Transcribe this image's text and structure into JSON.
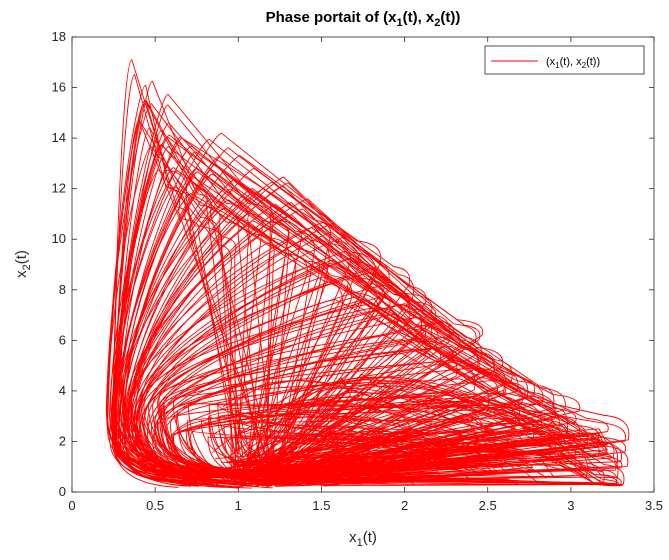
{
  "chart_data": {
    "type": "line",
    "title": {
      "base": "Phase portait of (x",
      "sub1": "1",
      "mid": "(t), x",
      "sub2": "2",
      "end": "(t))"
    },
    "xlabel": {
      "base": "x",
      "sub": "1",
      "end": "(t)"
    },
    "ylabel": {
      "base": "x",
      "sub": "2",
      "end": "(t)"
    },
    "xlim": [
      0,
      3.5
    ],
    "ylim": [
      0,
      18
    ],
    "xticks": [
      0,
      0.5,
      1,
      1.5,
      2,
      2.5,
      3,
      3.5
    ],
    "xtick_labels": [
      "0",
      "0.5",
      "1",
      "1.5",
      "2",
      "2.5",
      "3",
      "3.5"
    ],
    "yticks": [
      0,
      2,
      4,
      6,
      8,
      10,
      12,
      14,
      16,
      18
    ],
    "ytick_labels": [
      "0",
      "2",
      "4",
      "6",
      "8",
      "10",
      "12",
      "14",
      "16",
      "18"
    ],
    "grid": false,
    "legend": {
      "placement": "top-right",
      "label": {
        "p1": "(x",
        "s1": "1",
        "p2": "(t), x",
        "s2": "2",
        "p3": "(t))"
      }
    },
    "series": [
      {
        "color": "#ff0000",
        "description_of_shape": "quasi-periodic orbit: fast rise at low x1 (≈0.2–0.6) to high x2 peaks, then decay along diagonal toward high x1 / low x2",
        "lobes": [
          {
            "x_return": 0.22,
            "x_peak": 0.4,
            "y_peak": 16.8,
            "x_tip": 0.62,
            "y_tip": 12.6
          },
          {
            "x_return": 0.24,
            "x_peak": 0.44,
            "y_peak": 16.4,
            "x_tip": 0.78,
            "y_tip": 12.0
          },
          {
            "x_return": 0.23,
            "x_peak": 0.5,
            "y_peak": 15.1,
            "x_tip": 0.9,
            "y_tip": 11.5
          },
          {
            "x_return": 0.26,
            "x_peak": 0.54,
            "y_peak": 15.6,
            "x_tip": 1.1,
            "y_tip": 11.8
          },
          {
            "x_return": 0.25,
            "x_peak": 0.62,
            "y_peak": 14.2,
            "x_tip": 1.25,
            "y_tip": 10.9
          },
          {
            "x_return": 0.28,
            "x_peak": 0.7,
            "y_peak": 14.4,
            "x_tip": 1.4,
            "y_tip": 10.8
          },
          {
            "x_return": 0.27,
            "x_peak": 0.78,
            "y_peak": 13.9,
            "x_tip": 1.55,
            "y_tip": 10.0
          },
          {
            "x_return": 0.3,
            "x_peak": 0.88,
            "y_peak": 14.2,
            "x_tip": 1.7,
            "y_tip": 9.7
          },
          {
            "x_return": 0.29,
            "x_peak": 0.96,
            "y_peak": 13.2,
            "x_tip": 1.8,
            "y_tip": 9.1
          },
          {
            "x_return": 0.33,
            "x_peak": 1.05,
            "y_peak": 13.3,
            "x_tip": 1.92,
            "y_tip": 8.8
          },
          {
            "x_return": 0.31,
            "x_peak": 1.18,
            "y_peak": 12.4,
            "x_tip": 2.0,
            "y_tip": 8.2
          },
          {
            "x_return": 0.36,
            "x_peak": 1.3,
            "y_peak": 12.9,
            "x_tip": 2.1,
            "y_tip": 7.6
          },
          {
            "x_return": 0.34,
            "x_peak": 1.4,
            "y_peak": 11.4,
            "x_tip": 2.2,
            "y_tip": 7.2
          },
          {
            "x_return": 0.4,
            "x_peak": 1.52,
            "y_peak": 11.1,
            "x_tip": 2.3,
            "y_tip": 6.9
          },
          {
            "x_return": 0.38,
            "x_peak": 1.6,
            "y_peak": 10.2,
            "x_tip": 2.38,
            "y_tip": 6.6
          },
          {
            "x_return": 0.44,
            "x_peak": 1.7,
            "y_peak": 9.7,
            "x_tip": 2.45,
            "y_tip": 5.9
          },
          {
            "x_return": 0.42,
            "x_peak": 1.8,
            "y_peak": 9.1,
            "x_tip": 2.55,
            "y_tip": 5.4
          },
          {
            "x_return": 0.5,
            "x_peak": 1.9,
            "y_peak": 8.3,
            "x_tip": 2.62,
            "y_tip": 5.0
          },
          {
            "x_return": 0.48,
            "x_peak": 2.0,
            "y_peak": 7.7,
            "x_tip": 2.7,
            "y_tip": 4.6
          },
          {
            "x_return": 0.56,
            "x_peak": 2.1,
            "y_peak": 7.0,
            "x_tip": 2.78,
            "y_tip": 4.1
          },
          {
            "x_return": 0.54,
            "x_peak": 2.2,
            "y_peak": 6.4,
            "x_tip": 2.86,
            "y_tip": 4.2
          },
          {
            "x_return": 0.62,
            "x_peak": 2.3,
            "y_peak": 5.8,
            "x_tip": 2.95,
            "y_tip": 3.4
          },
          {
            "x_return": 0.6,
            "x_peak": 2.4,
            "y_peak": 5.3,
            "x_tip": 3.05,
            "y_tip": 2.8
          },
          {
            "x_return": 0.7,
            "x_peak": 2.55,
            "y_peak": 4.5,
            "x_tip": 3.15,
            "y_tip": 2.4
          },
          {
            "x_return": 0.8,
            "x_peak": 2.65,
            "y_peak": 3.8,
            "x_tip": 3.2,
            "y_tip": 3.0
          },
          {
            "x_return": 0.9,
            "x_peak": 2.8,
            "y_peak": 3.1,
            "x_tip": 3.2,
            "y_tip": 1.6
          },
          {
            "x_return": 1.0,
            "x_peak": 2.9,
            "y_peak": 2.3,
            "x_tip": 3.2,
            "y_tip": 0.8
          }
        ]
      }
    ]
  }
}
